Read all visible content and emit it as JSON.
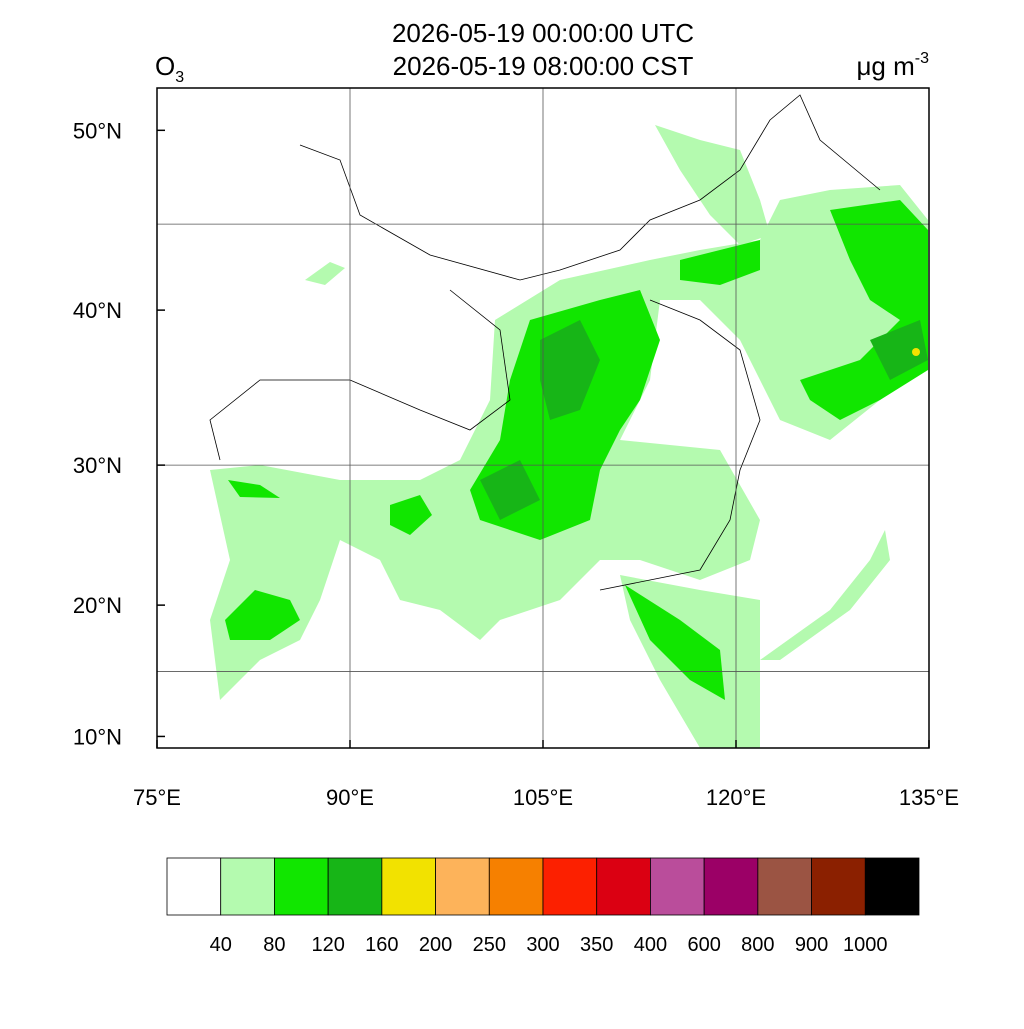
{
  "chart_data": {
    "type": "map",
    "title_lines": [
      "2026-05-19 00:00:00 UTC",
      "2026-05-19 08:00:00 CST"
    ],
    "variable": {
      "base": "O",
      "subscript": "3"
    },
    "units": {
      "base": "μg m",
      "superscript": "-3"
    },
    "projection": "mercator",
    "xlim": [
      75,
      135
    ],
    "ylim": [
      9.1,
      52.1
    ],
    "xticks": [
      {
        "value": 75,
        "label": "75°E"
      },
      {
        "value": 90,
        "label": "90°E"
      },
      {
        "value": 105,
        "label": "105°E"
      },
      {
        "value": 120,
        "label": "120°E"
      },
      {
        "value": 135,
        "label": "135°E"
      }
    ],
    "yticks": [
      {
        "value": 10,
        "label": "10°N"
      },
      {
        "value": 20,
        "label": "20°N"
      },
      {
        "value": 30,
        "label": "30°N"
      },
      {
        "value": 40,
        "label": "40°N"
      },
      {
        "value": 50,
        "label": "50°N"
      }
    ],
    "lon_grid": [
      90,
      105,
      120
    ],
    "lat_grid": [
      15,
      30,
      45
    ],
    "colorbar": {
      "levels": [
        40,
        80,
        120,
        160,
        200,
        250,
        300,
        350,
        400,
        600,
        800,
        900,
        1000
      ],
      "colors": [
        "#ffffff",
        "#b4faaf",
        "#11e600",
        "#17b517",
        "#f2e200",
        "#fdb35a",
        "#f68000",
        "#fc2000",
        "#db0012",
        "#ba4d9b",
        "#9b0066",
        "#9b5443",
        "#8b2000",
        "#000000"
      ]
    }
  }
}
